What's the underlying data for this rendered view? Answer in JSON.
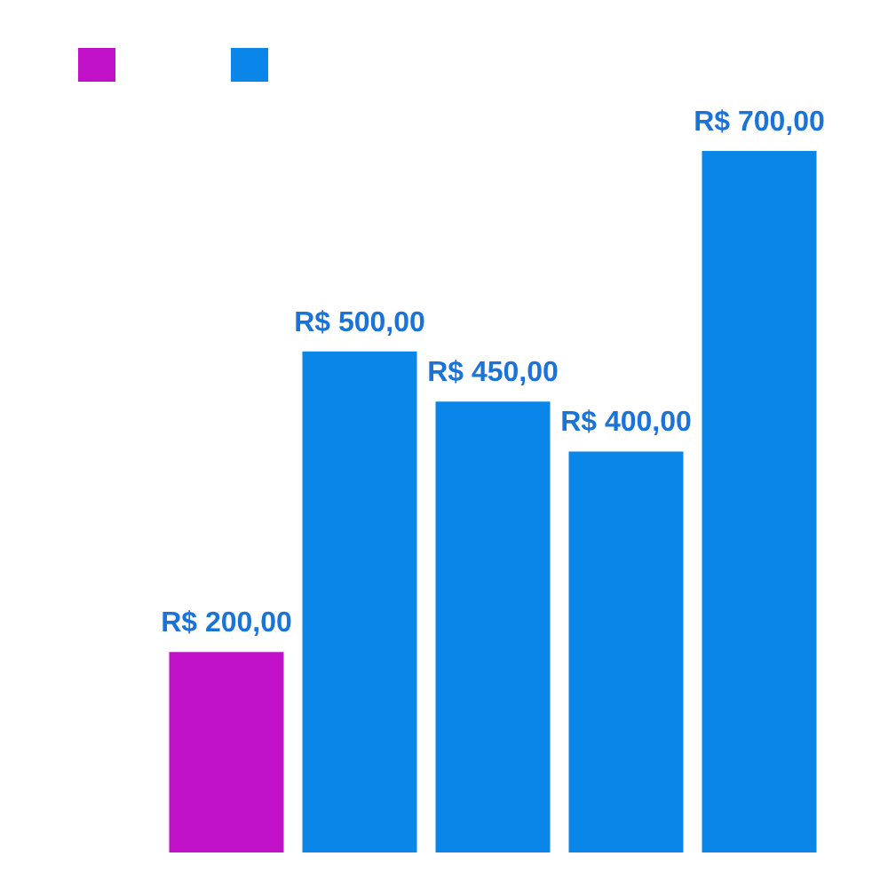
{
  "chart_data": {
    "type": "bar",
    "categories": [
      null,
      null,
      null,
      null,
      null
    ],
    "values": [
      200,
      500,
      450,
      400,
      700
    ],
    "colors": [
      "#c010c8",
      "#0a86e8",
      "#0a86e8",
      "#0a86e8",
      "#0a86e8"
    ],
    "value_labels": [
      "R$ 200,00",
      "R$ 500,00",
      "R$ 450,00",
      "R$ 400,00",
      "R$ 700,00"
    ],
    "data_labels": true,
    "tick_labels": false
  }
}
